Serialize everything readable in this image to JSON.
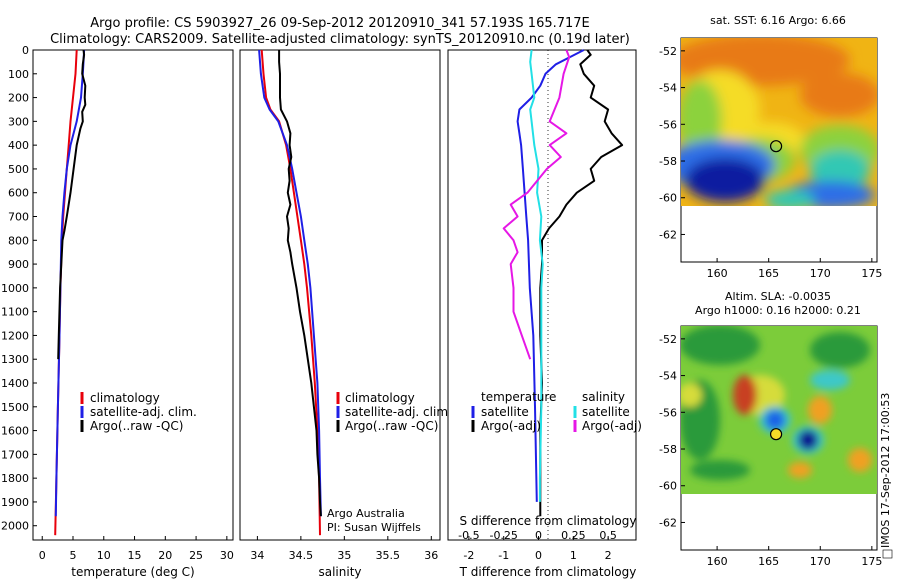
{
  "header": {
    "title_line1": "Argo profile: CS 5903927_26 09-Sep-2012 20120910_341 57.193S 165.717E",
    "title_line2": "Climatology: CARS2009. Satellite-adjusted climatology: synTS_20120910.nc (0.19d later)"
  },
  "side_stamp": "IMOS 17-Sep-2012 17:00:53",
  "colors": {
    "climatology": "#e8000b",
    "satellite": "#1f1fe6",
    "argo": "#000000",
    "salinity_satellite": "#22e0e6",
    "salinity_argo": "#e617e6"
  },
  "chart_data": [
    {
      "type": "line",
      "panel": "temperature",
      "xlabel": "temperature (deg C)",
      "ylabel": "",
      "xlim": [
        -1.5,
        31
      ],
      "ylim": [
        2060,
        0
      ],
      "x_ticks": [
        0,
        5,
        10,
        15,
        20,
        25,
        30
      ],
      "y_ticks": [
        0,
        100,
        200,
        300,
        400,
        500,
        600,
        700,
        800,
        900,
        1000,
        1100,
        1200,
        1300,
        1400,
        1500,
        1600,
        1700,
        1800,
        1900,
        2000
      ],
      "legend_placement": "lower-center",
      "series": [
        {
          "name": "climatology",
          "color": "#e8000b",
          "depth": [
            0,
            50,
            100,
            200,
            300,
            400,
            500,
            600,
            700,
            800,
            1000,
            1200,
            1500,
            1800,
            2040
          ],
          "values": [
            5.6,
            5.5,
            5.4,
            5.0,
            4.6,
            4.3,
            4.0,
            3.7,
            3.4,
            3.2,
            2.95,
            2.8,
            2.55,
            2.3,
            2.1
          ]
        },
        {
          "name": "satellite-adj. clim.",
          "color": "#1f1fe6",
          "depth": [
            0,
            50,
            100,
            200,
            300,
            400,
            500,
            600,
            700,
            800,
            1000,
            1200,
            1500,
            1800,
            1960
          ],
          "values": [
            6.8,
            6.7,
            6.6,
            6.3,
            5.6,
            4.6,
            4.0,
            3.6,
            3.3,
            3.1,
            2.95,
            2.8,
            2.55,
            2.3,
            2.2
          ]
        },
        {
          "name": "Argo(..raw -QC)",
          "color": "#000000",
          "depth": [
            0,
            20,
            60,
            100,
            150,
            200,
            230,
            260,
            300,
            330,
            400,
            500,
            600,
            700,
            760,
            800,
            900,
            1000,
            1200,
            1300
          ],
          "values": [
            6.7,
            6.8,
            6.6,
            6.5,
            7.0,
            6.9,
            7.0,
            6.5,
            6.6,
            6.2,
            5.6,
            5.1,
            4.6,
            4.0,
            3.6,
            3.3,
            3.1,
            2.9,
            2.7,
            2.6
          ]
        }
      ]
    },
    {
      "type": "line",
      "panel": "salinity",
      "xlabel": "salinity",
      "ylabel": "",
      "xlim": [
        33.8,
        36.1
      ],
      "ylim": [
        2060,
        0
      ],
      "x_ticks": [
        34,
        34.5,
        35,
        35.5,
        36
      ],
      "legend_placement": "lower-right",
      "series": [
        {
          "name": "climatology",
          "color": "#e8000b",
          "depth": [
            0,
            100,
            200,
            250,
            300,
            400,
            500,
            600,
            700,
            800,
            900,
            1000,
            1200,
            1400,
            1600,
            1800,
            2040
          ],
          "values": [
            34.05,
            34.07,
            34.1,
            34.15,
            34.25,
            34.33,
            34.38,
            34.42,
            34.46,
            34.5,
            34.54,
            34.57,
            34.62,
            34.66,
            34.69,
            34.71,
            34.72
          ]
        },
        {
          "name": "satellite-adj. clim.",
          "color": "#1f1fe6",
          "depth": [
            0,
            100,
            200,
            250,
            300,
            400,
            500,
            600,
            700,
            800,
            900,
            1000,
            1200,
            1400,
            1600,
            1800,
            1960
          ],
          "values": [
            34.02,
            34.04,
            34.08,
            34.14,
            34.24,
            34.34,
            34.4,
            34.45,
            34.5,
            34.54,
            34.58,
            34.61,
            34.65,
            34.69,
            34.71,
            34.72,
            34.73
          ]
        },
        {
          "name": "Argo(..raw -QC)",
          "color": "#000000",
          "depth": [
            0,
            50,
            100,
            150,
            200,
            250,
            300,
            350,
            400,
            450,
            500,
            550,
            600,
            650,
            700,
            750,
            800,
            850,
            900,
            1000,
            1100,
            1200,
            1300,
            1400,
            1500,
            1600,
            1700,
            1800,
            1900,
            1960
          ],
          "values": [
            34.25,
            34.25,
            34.26,
            34.26,
            34.26,
            34.27,
            34.34,
            34.38,
            34.37,
            34.39,
            34.36,
            34.37,
            34.35,
            34.38,
            34.34,
            34.36,
            34.35,
            34.38,
            34.4,
            34.45,
            34.49,
            34.54,
            34.58,
            34.62,
            34.65,
            34.68,
            34.69,
            34.71,
            34.72,
            34.73
          ]
        }
      ]
    },
    {
      "type": "line",
      "panel": "difference",
      "xlabel": "T difference from climatology",
      "xlabel_top": "S difference from climatology",
      "ylabel": "",
      "xlim": [
        -2.6,
        2.8
      ],
      "ylim": [
        2060,
        0
      ],
      "x_ticks": [
        -2,
        -1,
        0,
        1,
        2
      ],
      "s_ticks": [
        -0.5,
        -0.25,
        0,
        0.25,
        0.5
      ],
      "legend_placement": "lower-center",
      "legend_headers": [
        "temperature",
        "salinity"
      ],
      "series": [
        {
          "name": "satellite",
          "group": "temperature",
          "color": "#1f1fe6",
          "depth": [
            0,
            30,
            60,
            100,
            150,
            200,
            250,
            300,
            350,
            400,
            500,
            600,
            700,
            800,
            1000,
            1200,
            1500,
            1900
          ],
          "values": [
            1.3,
            0.9,
            0.5,
            0.2,
            0.05,
            -0.2,
            -0.55,
            -0.6,
            -0.55,
            -0.5,
            -0.45,
            -0.4,
            -0.35,
            -0.3,
            -0.25,
            -0.15,
            -0.1,
            -0.05
          ]
        },
        {
          "name": "Argo(-adj)",
          "group": "temperature",
          "color": "#000000",
          "depth": [
            0,
            20,
            60,
            100,
            150,
            200,
            250,
            300,
            350,
            400,
            450,
            500,
            550,
            600,
            650,
            700,
            750,
            800,
            900,
            1000,
            1200,
            1400,
            1600,
            1800,
            1960
          ],
          "values": [
            1.4,
            1.5,
            1.2,
            1.3,
            1.6,
            1.5,
            2.0,
            1.9,
            2.1,
            2.4,
            1.8,
            1.5,
            1.6,
            1.1,
            0.8,
            0.6,
            0.3,
            0.1,
            0.1,
            0.05,
            0.05,
            0.1,
            0.05,
            0.05,
            0.05
          ]
        },
        {
          "name": "satellite",
          "group": "salinity",
          "color": "#22e0e6",
          "depth": [
            0,
            50,
            100,
            200,
            250,
            300,
            400,
            500,
            600,
            700,
            800,
            900,
            1000,
            1200,
            1500,
            1800,
            1900
          ],
          "values": [
            -0.05,
            -0.06,
            -0.05,
            -0.03,
            -0.06,
            -0.05,
            -0.03,
            0.0,
            -0.01,
            0.02,
            0.01,
            0.03,
            0.02,
            0.02,
            0.02,
            0.01,
            0.01
          ]
        },
        {
          "name": "Argo(-adj)",
          "group": "salinity",
          "color": "#e617e6",
          "depth": [
            0,
            30,
            100,
            200,
            300,
            350,
            400,
            450,
            500,
            600,
            650,
            700,
            750,
            800,
            850,
            900,
            1000,
            1100,
            1200,
            1300
          ],
          "values": [
            0.2,
            0.22,
            0.18,
            0.15,
            0.08,
            0.2,
            0.08,
            0.16,
            0.06,
            -0.08,
            -0.2,
            -0.15,
            -0.25,
            -0.18,
            -0.15,
            -0.2,
            -0.18,
            -0.18,
            -0.12,
            -0.06
          ]
        }
      ]
    },
    {
      "type": "heatmap",
      "panel": "map-sst",
      "title": "sat. SST: 6.16 Argo: 6.66",
      "xlim": [
        156.5,
        175.5
      ],
      "ylim": [
        -63.5,
        -51.3
      ],
      "x_ticks": [
        160,
        165,
        170,
        175
      ],
      "y_ticks": [
        -52,
        -54,
        -56,
        -58,
        -60,
        -62
      ],
      "data_extent_lat": [
        -60,
        -51.3
      ],
      "marker": {
        "lon": 165.717,
        "lat": -57.193
      },
      "colors": [
        "#e87a16",
        "#f0b414",
        "#f5dc28",
        "#8cd23c",
        "#32c8b4",
        "#2d6ee6",
        "#0a1ea0"
      ]
    },
    {
      "type": "heatmap",
      "panel": "map-sla",
      "title": "Altim. SLA: -0.0035",
      "subtitle": "Argo h1000: 0.16 h2000: 0.21",
      "xlim": [
        156.5,
        175.5
      ],
      "ylim": [
        -63.5,
        -51.3
      ],
      "x_ticks": [
        160,
        165,
        170,
        175
      ],
      "y_ticks": [
        -52,
        -54,
        -56,
        -58,
        -60,
        -62
      ],
      "data_extent_lat": [
        -60,
        -51.3
      ],
      "marker": {
        "lon": 165.717,
        "lat": -57.193
      },
      "colors": [
        "#2a9a3a",
        "#7ccc3a",
        "#d6dc3a",
        "#f0a024",
        "#c84020",
        "#3cc8c8",
        "#1e64e6",
        "#0a1490"
      ]
    }
  ]
}
